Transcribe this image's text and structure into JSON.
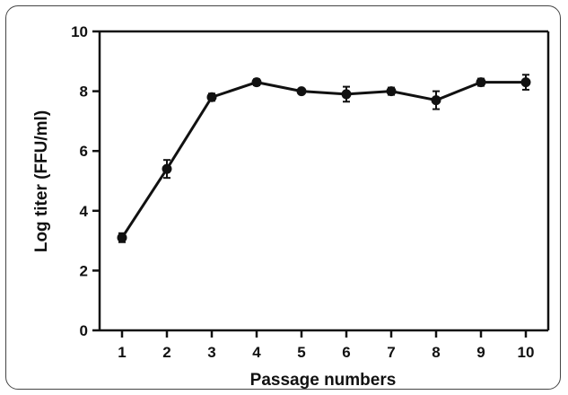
{
  "chart_data": {
    "type": "line",
    "title": "",
    "xlabel": "Passage numbers",
    "ylabel": "Log titer (FFU/ml)",
    "xlim": [
      0.5,
      10.5
    ],
    "ylim": [
      0,
      10
    ],
    "x_ticks": [
      1,
      2,
      3,
      4,
      5,
      6,
      7,
      8,
      9,
      10
    ],
    "y_ticks": [
      0,
      2,
      4,
      6,
      8,
      10
    ],
    "grid": false,
    "legend": "none",
    "color": "#111111",
    "series": [
      {
        "x": [
          1,
          2,
          3,
          4,
          5,
          6,
          7,
          8,
          9,
          10
        ],
        "y": [
          3.1,
          5.4,
          7.8,
          8.3,
          8.0,
          7.9,
          8.0,
          7.7,
          8.3,
          8.3
        ],
        "error": [
          0.15,
          0.3,
          0.12,
          0.1,
          0.06,
          0.25,
          0.12,
          0.3,
          0.12,
          0.25
        ]
      }
    ]
  }
}
